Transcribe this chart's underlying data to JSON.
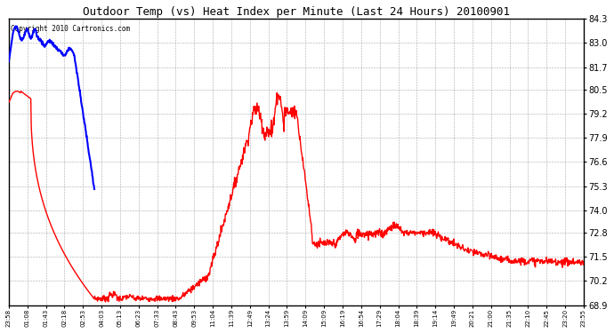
{
  "title": "Outdoor Temp (vs) Heat Index per Minute (Last 24 Hours) 20100901",
  "copyright_text": "Copyright 2010 Cartronics.com",
  "background_color": "#ffffff",
  "plot_bg_color": "#ffffff",
  "grid_color": "#aaaaaa",
  "line_color_red": "#ff0000",
  "line_color_blue": "#0000ff",
  "ylim": [
    68.9,
    84.3
  ],
  "yticks": [
    68.9,
    70.2,
    71.5,
    72.8,
    74.0,
    75.3,
    76.6,
    77.9,
    79.2,
    80.5,
    81.7,
    83.0,
    84.3
  ],
  "x_labels": [
    "23:58",
    "01:08",
    "01:43",
    "02:18",
    "02:53",
    "04:03",
    "05:13",
    "06:23",
    "07:33",
    "08:43",
    "09:53",
    "11:04",
    "11:39",
    "12:49",
    "13:24",
    "13:59",
    "14:09",
    "15:09",
    "16:19",
    "16:54",
    "17:29",
    "18:04",
    "18:39",
    "19:14",
    "19:49",
    "20:21",
    "21:00",
    "21:35",
    "22:10",
    "22:45",
    "23:20",
    "23:55"
  ],
  "figsize": [
    6.9,
    3.75
  ],
  "dpi": 100
}
